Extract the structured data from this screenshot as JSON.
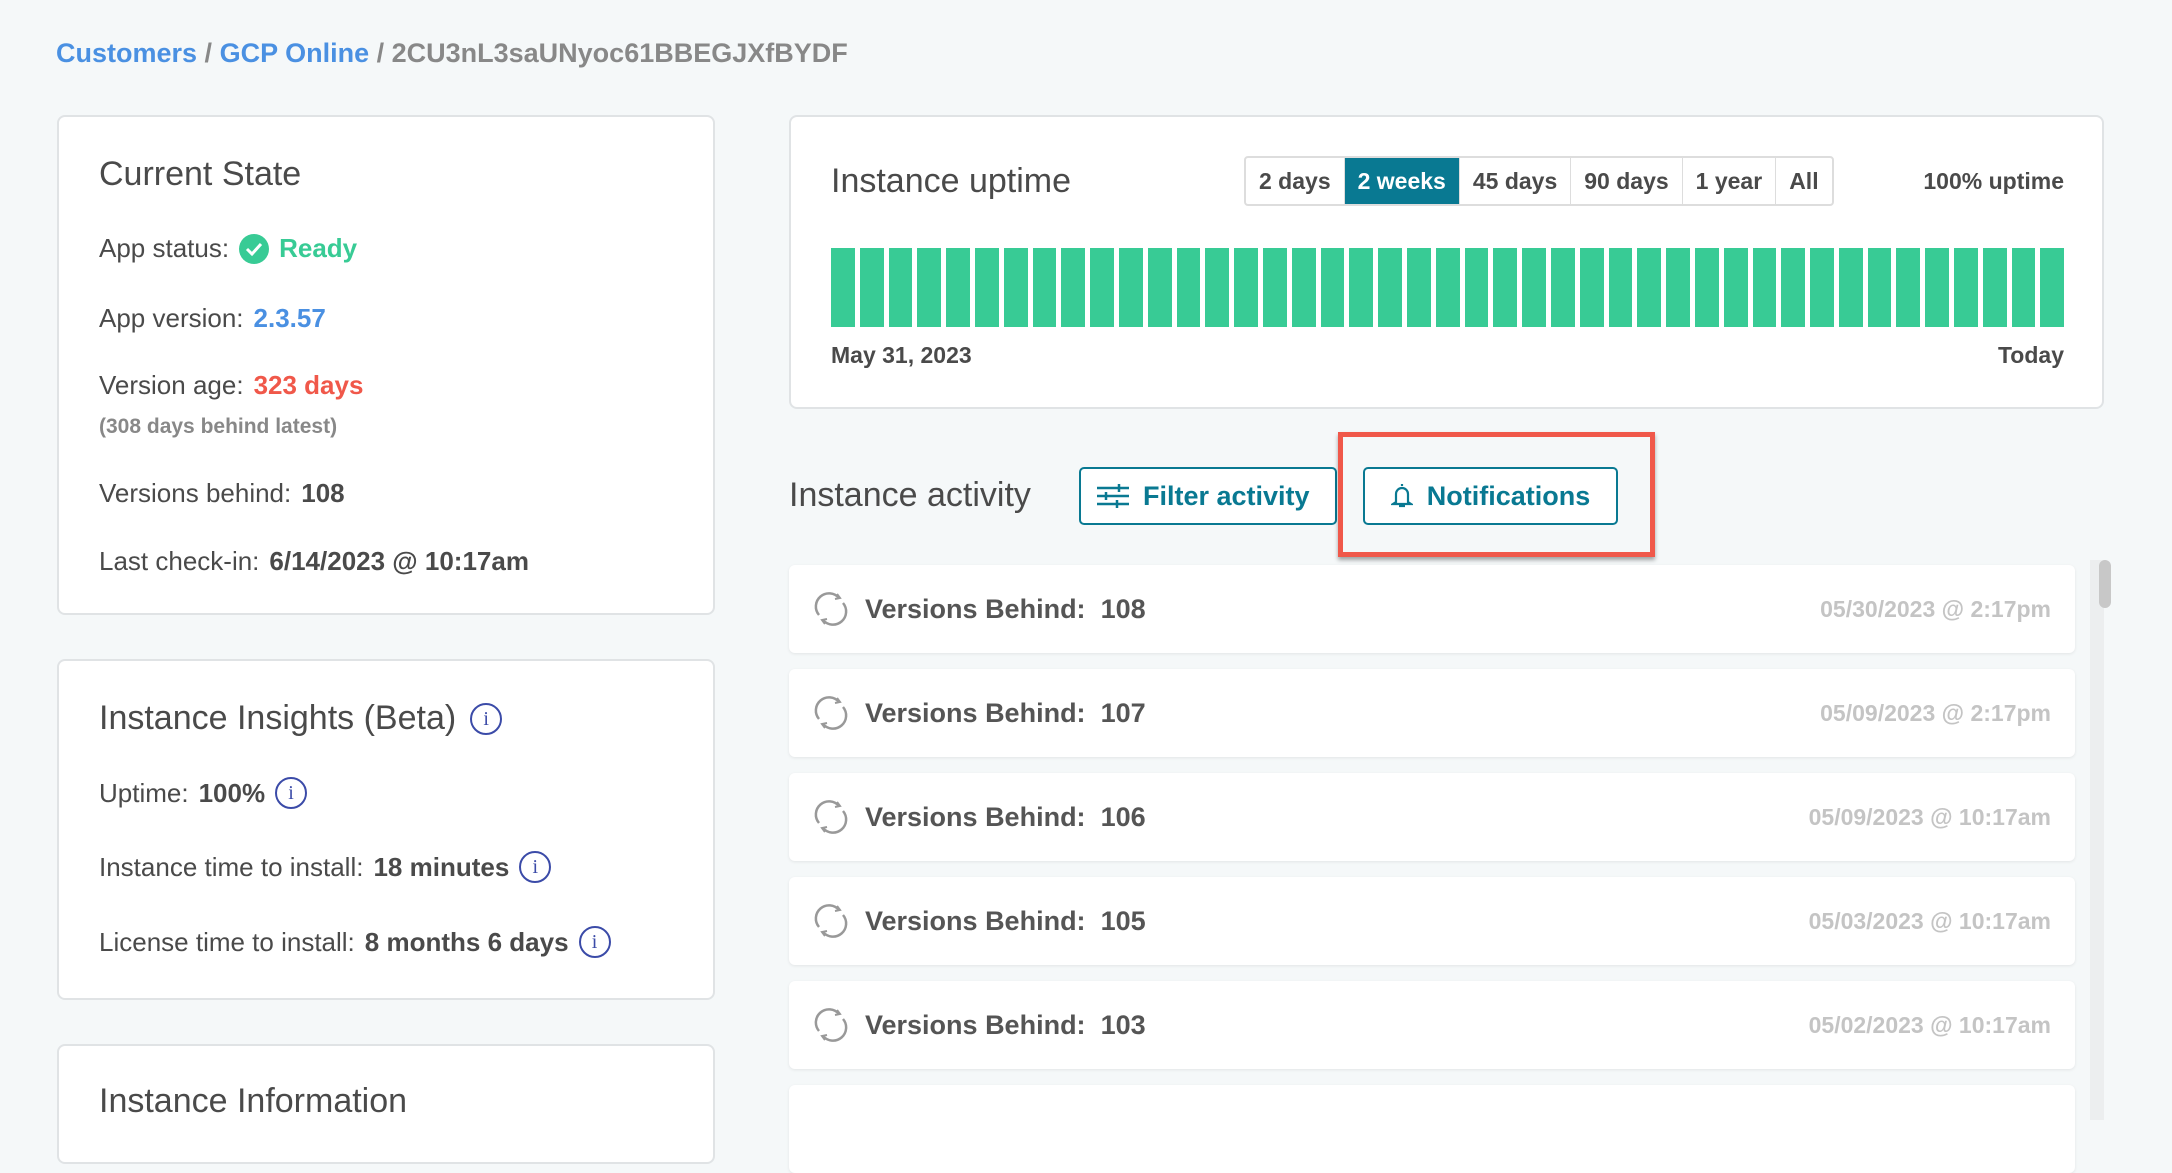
{
  "breadcrumb": {
    "items": [
      "Customers",
      "GCP Online"
    ],
    "current": "2CU3nL3saUNyoc61BBEGJXfBYDF"
  },
  "current_state": {
    "title": "Current State",
    "app_status_label": "App status:",
    "app_status": "Ready",
    "app_version_label": "App version:",
    "app_version": "2.3.57",
    "version_age_label": "Version age:",
    "version_age": "323 days",
    "version_age_note": "(308 days behind latest)",
    "versions_behind_label": "Versions behind:",
    "versions_behind": "108",
    "last_checkin_label": "Last check-in:",
    "last_checkin": "6/14/2023 @ 10:17am"
  },
  "insights": {
    "title": "Instance Insights (Beta)",
    "uptime_label": "Uptime:",
    "uptime": "100%",
    "install_label": "Instance time to install:",
    "install": "18 minutes",
    "license_label": "License time to install:",
    "license": "8 months 6 days"
  },
  "instance_info": {
    "title": "Instance Information"
  },
  "uptime": {
    "title": "Instance uptime",
    "ranges": [
      "2 days",
      "2 weeks",
      "45 days",
      "90 days",
      "1 year",
      "All"
    ],
    "selected": "2 weeks",
    "summary": "100% uptime",
    "start_label": "May 31, 2023",
    "end_label": "Today",
    "bar_count": 43,
    "bar_status": "up",
    "bar_color": "#38cb95"
  },
  "activity": {
    "title": "Instance activity",
    "filter_label": "Filter activity",
    "notifications_label": "Notifications",
    "items": [
      {
        "label": "Versions Behind:",
        "value": "108",
        "time": "05/30/2023 @ 2:17pm"
      },
      {
        "label": "Versions Behind:",
        "value": "107",
        "time": "05/09/2023 @ 2:17pm"
      },
      {
        "label": "Versions Behind:",
        "value": "106",
        "time": "05/09/2023 @ 10:17am"
      },
      {
        "label": "Versions Behind:",
        "value": "105",
        "time": "05/03/2023 @ 10:17am"
      },
      {
        "label": "Versions Behind:",
        "value": "103",
        "time": "05/02/2023 @ 10:17am"
      }
    ]
  },
  "colors": {
    "accent": "#097992",
    "ready": "#38cb95",
    "link": "#4a90e2",
    "danger": "#f0584a"
  }
}
